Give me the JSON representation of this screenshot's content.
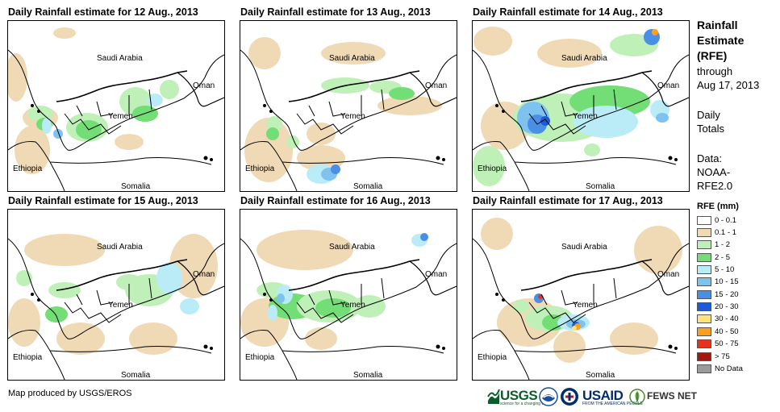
{
  "panels": [
    {
      "title": "Daily Rainfall estimate for 12 Aug., 2013"
    },
    {
      "title": "Daily Rainfall estimate for 13 Aug., 2013"
    },
    {
      "title": "Daily Rainfall estimate for 14 Aug., 2013"
    },
    {
      "title": "Daily Rainfall estimate for 15 Aug., 2013"
    },
    {
      "title": "Daily Rainfall estimate for 16 Aug., 2013"
    },
    {
      "title": "Daily Rainfall estimate for 17 Aug., 2013"
    }
  ],
  "map_labels": {
    "saudi_arabia": "Saudi Arabia",
    "oman": "Oman",
    "yemen": "Yemen",
    "ethiopia": "Ethiopia",
    "somalia": "Somalia"
  },
  "sidebar": {
    "title_lines": [
      "Rainfall",
      "Estimate",
      "(RFE)"
    ],
    "through_label": "through",
    "through_date": "Aug 17, 2013",
    "daily_lines": [
      "Daily",
      "Totals"
    ],
    "data_lines": [
      "Data:",
      "NOAA-",
      "RFE2.0"
    ]
  },
  "legend": {
    "title": "RFE (mm)",
    "items": [
      {
        "label": "0 - 0.1",
        "color": "#ffffff"
      },
      {
        "label": "0.1 - 1",
        "color": "#f0d9b5"
      },
      {
        "label": "1 - 2",
        "color": "#bff0b8"
      },
      {
        "label": "2 - 5",
        "color": "#73dd76"
      },
      {
        "label": "5 - 10",
        "color": "#b9ecf7"
      },
      {
        "label": "10 - 15",
        "color": "#7ec2ef"
      },
      {
        "label": "15 - 20",
        "color": "#4a8fe6"
      },
      {
        "label": "20 - 30",
        "color": "#1f5ad6"
      },
      {
        "label": "30 - 40",
        "color": "#ffe27a"
      },
      {
        "label": "40 - 50",
        "color": "#ff9f1c"
      },
      {
        "label": "50 - 75",
        "color": "#e8331c"
      },
      {
        "label": "> 75",
        "color": "#a11a12"
      },
      {
        "label": "No Data",
        "color": "#9b9b9b"
      }
    ]
  },
  "footer": {
    "credit": "Map produced by USGS/EROS",
    "logos": {
      "usgs": "USGS",
      "usgs_tagline": "science for a changing world",
      "usaid": "USAID",
      "usaid_tagline": "FROM THE AMERICAN PEOPLE",
      "fews": "FEWS NET"
    }
  }
}
